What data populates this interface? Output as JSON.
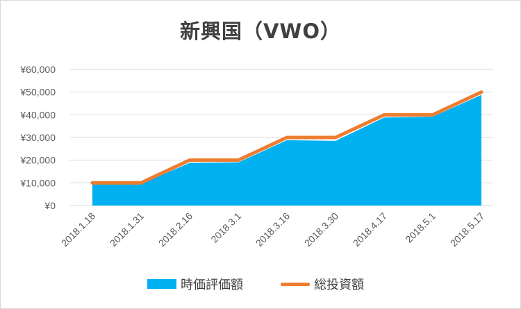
{
  "chart_data": {
    "type": "area",
    "title": "新興国（VWO）",
    "categories": [
      "2018.1.18",
      "2018.1.31",
      "2018.2.16",
      "2018.3.1",
      "2018.3.16",
      "2018.3.30",
      "2018.4.17",
      "2018.5.1",
      "2018.5.17"
    ],
    "series": [
      {
        "name": "時価評価額",
        "type": "area",
        "color": "#00b0f0",
        "values": [
          9500,
          9500,
          18800,
          19000,
          28800,
          28500,
          38800,
          39200,
          48800
        ]
      },
      {
        "name": "総投資額",
        "type": "line",
        "color": "#ed7d31",
        "values": [
          10000,
          10000,
          20000,
          20000,
          30000,
          30000,
          40000,
          40000,
          50000
        ]
      }
    ],
    "y_ticks": [
      "¥0",
      "¥10,000",
      "¥20,000",
      "¥30,000",
      "¥40,000",
      "¥50,000",
      "¥60,000"
    ],
    "ylim": [
      0,
      60000
    ],
    "grid": true,
    "legend_position": "bottom",
    "legend": [
      {
        "label": "時価評価額",
        "kind": "area",
        "color": "#00b0f0"
      },
      {
        "label": "総投資額",
        "kind": "line",
        "color": "#ed7d31"
      }
    ]
  }
}
